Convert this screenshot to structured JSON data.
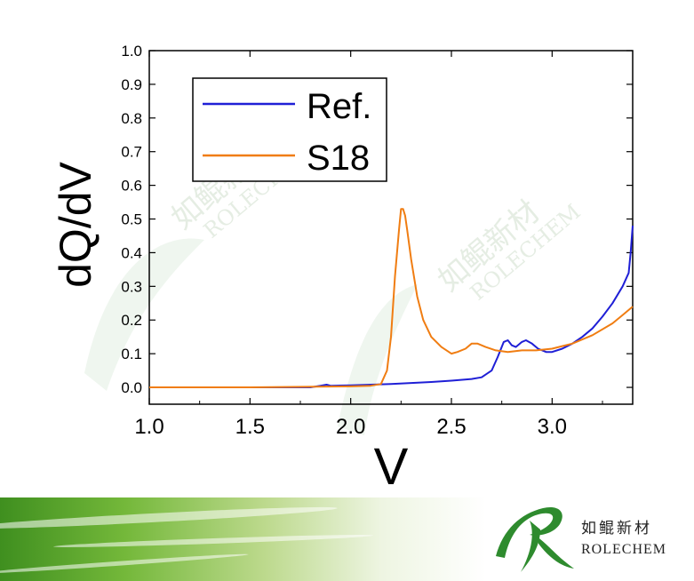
{
  "chart_data": {
    "type": "line",
    "xlabel": "V",
    "ylabel": "dQ/dV",
    "xlim": [
      1.0,
      3.4
    ],
    "ylim": [
      -0.05,
      1.0
    ],
    "x_ticks": [
      "1.0",
      "1.5",
      "2.0",
      "2.5",
      "3.0"
    ],
    "y_ticks": [
      "0.0",
      "0.1",
      "0.2",
      "0.3",
      "0.4",
      "0.5",
      "0.6",
      "0.7",
      "0.8",
      "0.9",
      "1.0"
    ],
    "legend_position": "top-left",
    "grid": false,
    "series": [
      {
        "name": "Ref.",
        "color": "#1f1fd6",
        "x": [
          1.0,
          1.8,
          1.85,
          1.88,
          1.9,
          2.0,
          2.1,
          2.2,
          2.3,
          2.4,
          2.5,
          2.6,
          2.65,
          2.7,
          2.73,
          2.76,
          2.78,
          2.8,
          2.82,
          2.85,
          2.87,
          2.9,
          2.93,
          2.97,
          3.0,
          3.05,
          3.1,
          3.15,
          3.2,
          3.25,
          3.3,
          3.35,
          3.38,
          3.39,
          3.4
        ],
        "y": [
          0.0,
          0.0,
          0.005,
          0.008,
          0.005,
          0.006,
          0.008,
          0.01,
          0.013,
          0.016,
          0.02,
          0.025,
          0.03,
          0.05,
          0.09,
          0.135,
          0.14,
          0.125,
          0.12,
          0.135,
          0.14,
          0.13,
          0.115,
          0.105,
          0.105,
          0.115,
          0.13,
          0.15,
          0.175,
          0.21,
          0.25,
          0.3,
          0.34,
          0.4,
          0.48
        ]
      },
      {
        "name": "S18",
        "color": "#f07d12",
        "x": [
          1.0,
          1.5,
          2.0,
          2.1,
          2.15,
          2.18,
          2.2,
          2.22,
          2.24,
          2.25,
          2.26,
          2.27,
          2.28,
          2.3,
          2.33,
          2.36,
          2.4,
          2.45,
          2.5,
          2.53,
          2.57,
          2.6,
          2.63,
          2.67,
          2.72,
          2.78,
          2.85,
          2.92,
          3.0,
          3.1,
          3.2,
          3.3,
          3.35,
          3.4
        ],
        "y": [
          0.0,
          0.0,
          0.003,
          0.005,
          0.01,
          0.05,
          0.15,
          0.33,
          0.47,
          0.53,
          0.53,
          0.51,
          0.47,
          0.38,
          0.27,
          0.2,
          0.15,
          0.12,
          0.1,
          0.105,
          0.115,
          0.13,
          0.13,
          0.12,
          0.11,
          0.105,
          0.11,
          0.11,
          0.115,
          0.13,
          0.155,
          0.19,
          0.215,
          0.24
        ]
      }
    ]
  },
  "brand": {
    "name_cn": "如鲲新材",
    "name_en": "ROLECHEM",
    "colors": {
      "primary": "#2e8b2e",
      "banner": "#74b83a"
    }
  }
}
